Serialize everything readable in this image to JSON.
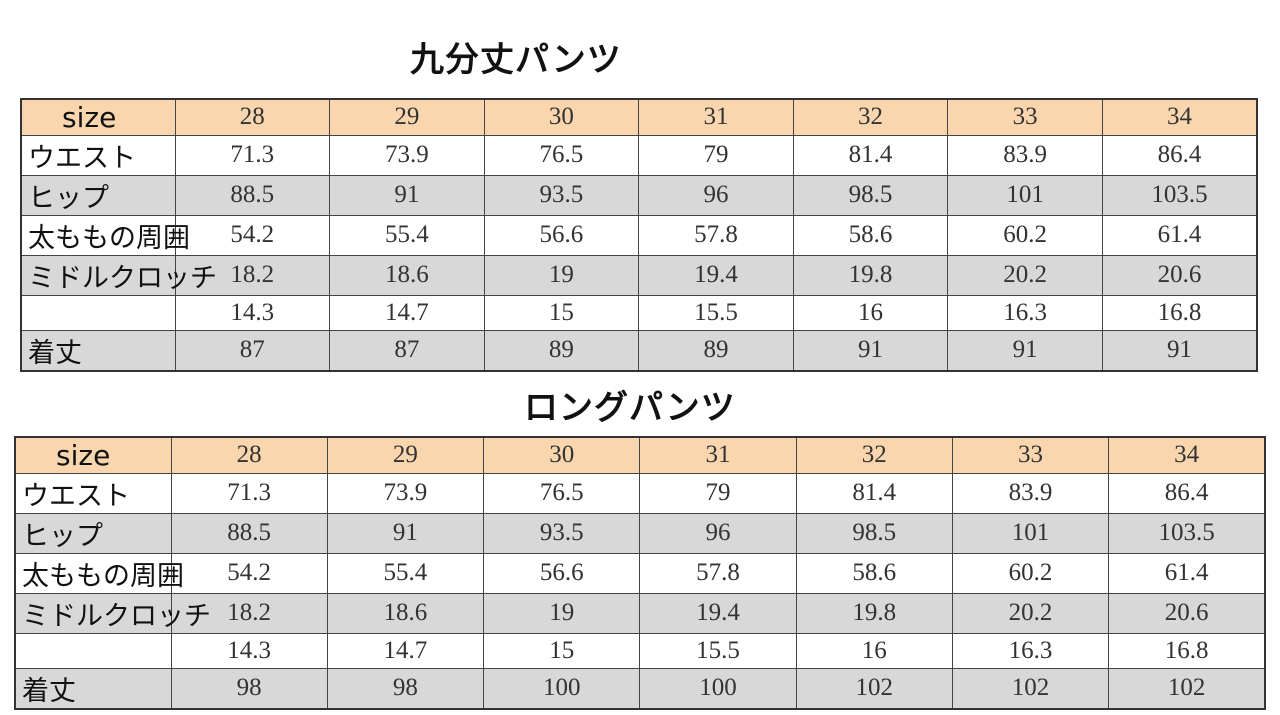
{
  "tables": [
    {
      "title": "九分丈パンツ",
      "header_label": "size",
      "sizes": [
        "28",
        "29",
        "30",
        "31",
        "32",
        "33",
        "34"
      ],
      "rows": [
        {
          "label": "ウエスト",
          "values": [
            "71.3",
            "73.9",
            "76.5",
            "79",
            "81.4",
            "83.9",
            "86.4"
          ]
        },
        {
          "label": "ヒップ",
          "values": [
            "88.5",
            "91",
            "93.5",
            "96",
            "98.5",
            "101",
            "103.5"
          ]
        },
        {
          "label": "太ももの周囲",
          "values": [
            "54.2",
            "55.4",
            "56.6",
            "57.8",
            "58.6",
            "60.2",
            "61.4"
          ]
        },
        {
          "label": "ミドルクロッチ",
          "values": [
            "18.2",
            "18.6",
            "19",
            "19.4",
            "19.8",
            "20.2",
            "20.6"
          ]
        },
        {
          "label": "",
          "values": [
            "14.3",
            "14.7",
            "15",
            "15.5",
            "16",
            "16.3",
            "16.8"
          ]
        },
        {
          "label": "着丈",
          "values": [
            "87",
            "87",
            "89",
            "89",
            "91",
            "91",
            "91"
          ]
        }
      ]
    },
    {
      "title": "ロングパンツ",
      "header_label": "size",
      "sizes": [
        "28",
        "29",
        "30",
        "31",
        "32",
        "33",
        "34"
      ],
      "rows": [
        {
          "label": "ウエスト",
          "values": [
            "71.3",
            "73.9",
            "76.5",
            "79",
            "81.4",
            "83.9",
            "86.4"
          ]
        },
        {
          "label": "ヒップ",
          "values": [
            "88.5",
            "91",
            "93.5",
            "96",
            "98.5",
            "101",
            "103.5"
          ]
        },
        {
          "label": "太ももの周囲",
          "values": [
            "54.2",
            "55.4",
            "56.6",
            "57.8",
            "58.6",
            "60.2",
            "61.4"
          ]
        },
        {
          "label": "ミドルクロッチ",
          "values": [
            "18.2",
            "18.6",
            "19",
            "19.4",
            "19.8",
            "20.2",
            "20.6"
          ]
        },
        {
          "label": "",
          "values": [
            "14.3",
            "14.7",
            "15",
            "15.5",
            "16",
            "16.3",
            "16.8"
          ]
        },
        {
          "label": "着丈",
          "values": [
            "98",
            "98",
            "100",
            "100",
            "102",
            "102",
            "102"
          ]
        }
      ]
    }
  ],
  "colors": {
    "header_bg": "#f9d6ae",
    "shaded_row_bg": "#d8d8d8",
    "plain_row_bg": "#ffffff",
    "border": "#444444"
  }
}
